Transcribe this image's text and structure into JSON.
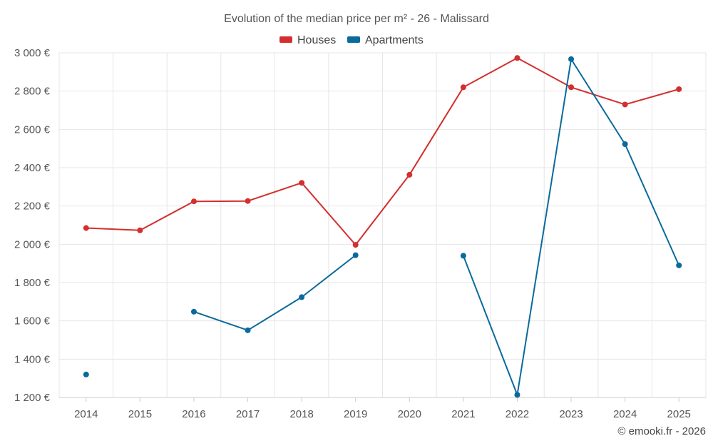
{
  "chart_data": {
    "type": "line",
    "title": "Evolution of the median price per m² - 26 - Malissard",
    "categories": [
      "2014",
      "2015",
      "2016",
      "2017",
      "2018",
      "2019",
      "2020",
      "2021",
      "2022",
      "2023",
      "2024",
      "2025"
    ],
    "ylim": [
      1200,
      3000
    ],
    "yticks": [
      1200,
      1400,
      1600,
      1800,
      2000,
      2200,
      2400,
      2600,
      2800,
      3000
    ],
    "ytick_labels": [
      "1 200 €",
      "1 400 €",
      "1 600 €",
      "1 800 €",
      "2 000 €",
      "2 200 €",
      "2 400 €",
      "2 600 €",
      "2 800 €",
      "3 000 €"
    ],
    "grid": true,
    "legend_position": "top-center",
    "series": [
      {
        "name": "Houses",
        "color": "#d32f2f",
        "values": [
          2085,
          2073,
          2224,
          2226,
          2321,
          1997,
          2363,
          2820,
          2973,
          2820,
          2730,
          2810
        ]
      },
      {
        "name": "Apartments",
        "color": "#0a6a9c",
        "values": [
          1320,
          null,
          1648,
          1551,
          1724,
          1943,
          null,
          1940,
          1214,
          2967,
          2523,
          1890
        ]
      }
    ],
    "credit": "© emooki.fr - 2026"
  }
}
